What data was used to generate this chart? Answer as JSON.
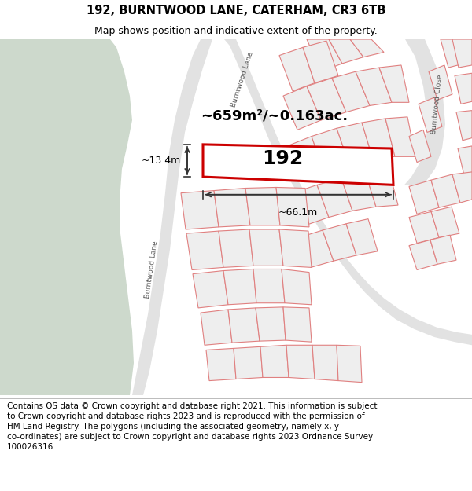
{
  "title_line1": "192, BURNTWOOD LANE, CATERHAM, CR3 6TB",
  "title_line2": "Map shows position and indicative extent of the property.",
  "footer_text": "Contains OS data © Crown copyright and database right 2021. This information is subject\nto Crown copyright and database rights 2023 and is reproduced with the permission of\nHM Land Registry. The polygons (including the associated geometry, namely x, y\nco-ordinates) are subject to Crown copyright and database rights 2023 Ordnance Survey\n100026316.",
  "plot_label": "192",
  "area_label": "~659m²/~0.163ac.",
  "width_label": "~66.1m",
  "height_label": "~13.4m",
  "map_bg": "#f7f7f7",
  "green_color": "#cdd9cc",
  "road_color": "#e2e2e2",
  "plot_fill": "#ffffff",
  "plot_edge": "#cc0000",
  "parcel_fill": "#eeeeee",
  "parcel_edge": "#e08080",
  "dim_color": "#333333",
  "label_color": "#555555",
  "title_fs": 10.5,
  "sub_fs": 9.0,
  "footer_fs": 7.5,
  "area_fs": 13,
  "num_fs": 18,
  "dim_fs": 9,
  "road_label_fs": 6.5
}
